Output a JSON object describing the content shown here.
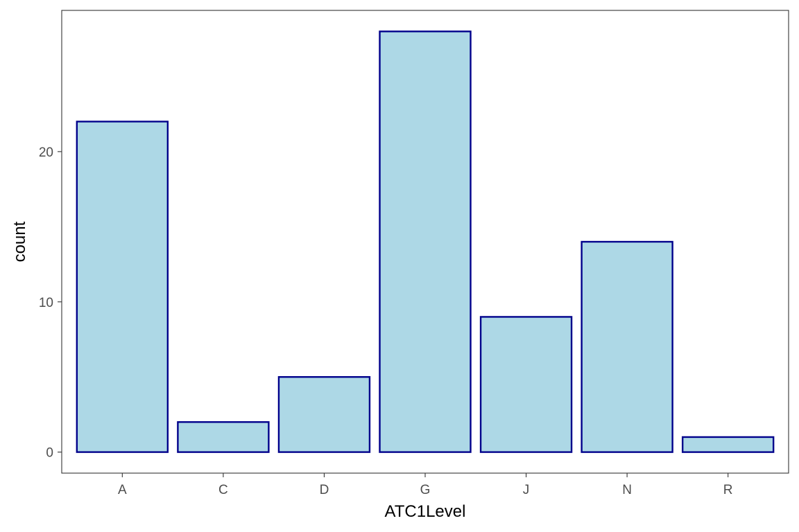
{
  "chart_data": {
    "type": "bar",
    "title": "",
    "xlabel": "ATC1Level",
    "ylabel": "count",
    "categories": [
      "A",
      "C",
      "D",
      "G",
      "J",
      "N",
      "R"
    ],
    "values": [
      22,
      2,
      5,
      28,
      9,
      14,
      1
    ],
    "ylim": [
      -1.4,
      29.4
    ],
    "yticks": [
      0,
      10,
      20
    ],
    "ytick_labels": [
      "0",
      "10",
      "20"
    ],
    "grid": false,
    "legend": "none",
    "colors": {
      "bar_fill": "#add8e6",
      "bar_stroke": "#00008b",
      "panel_border": "#333333",
      "tick_text": "#4d4d4d",
      "axis_title": "#000000"
    }
  }
}
